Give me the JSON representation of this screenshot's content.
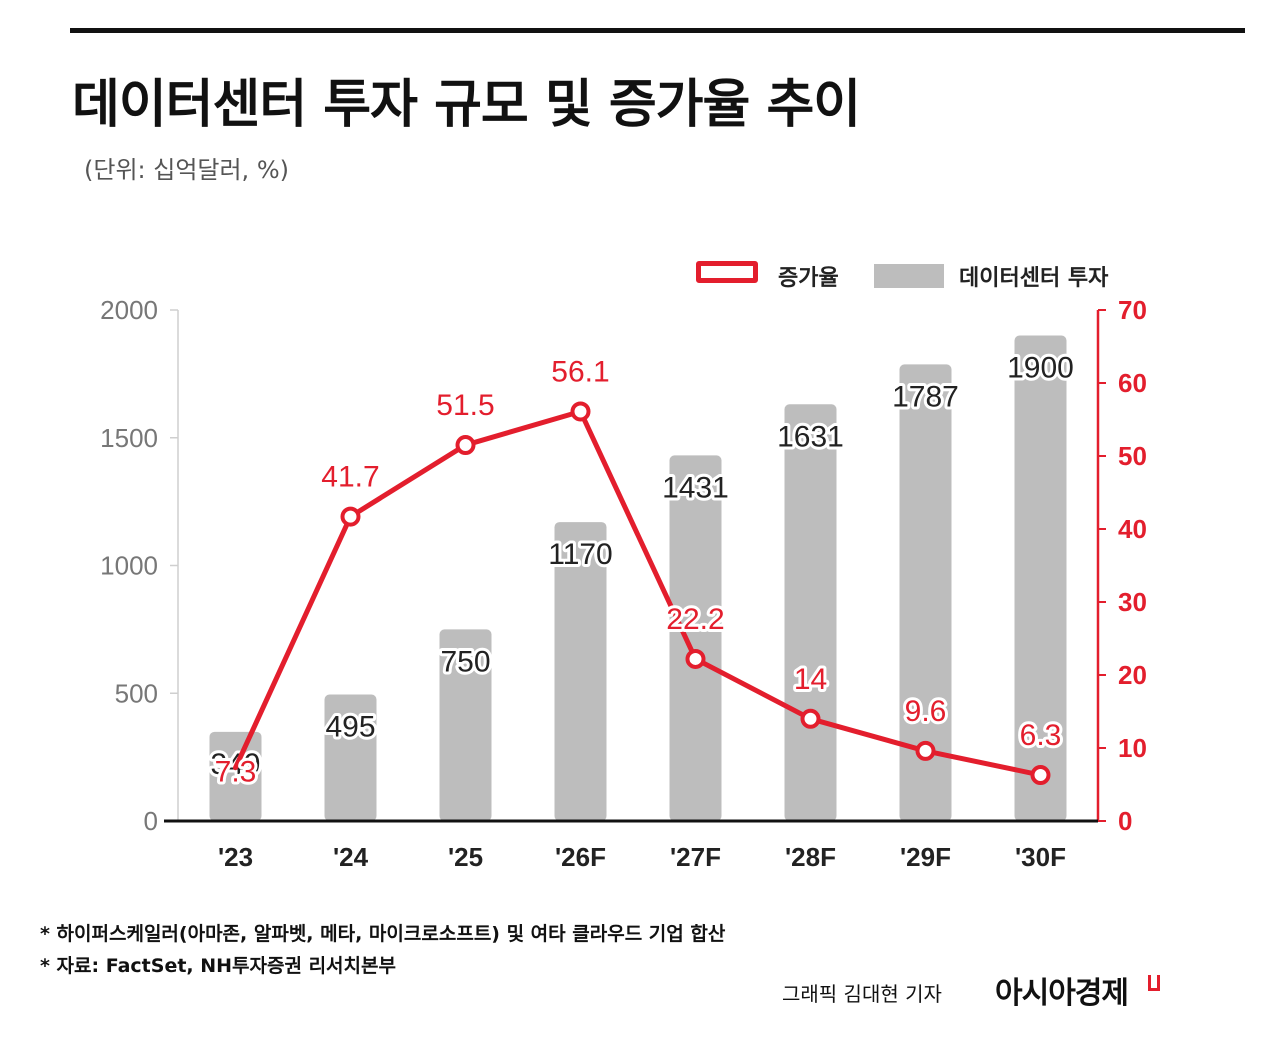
{
  "header": {
    "title": "데이터센터 투자 규모 및 증가율 추이",
    "subtitle": "(단위: 십억달러, %)"
  },
  "legend": {
    "line_label": "증가율",
    "bar_label": "데이터센터 투자"
  },
  "colors": {
    "line": "#e31e2d",
    "bar": "#bdbdbd",
    "left_axis_text": "#777777",
    "right_axis_text": "#e31e2d"
  },
  "chart_data": {
    "type": "bar",
    "categories": [
      "'23",
      "'24",
      "'25",
      "'26F",
      "'27F",
      "'28F",
      "'29F",
      "'30F"
    ],
    "series": [
      {
        "name": "데이터센터 투자",
        "type": "bar",
        "axis": "left",
        "values": [
          349,
          495,
          750,
          1170,
          1431,
          1631,
          1787,
          1900
        ]
      },
      {
        "name": "증가율",
        "type": "line",
        "axis": "right",
        "values": [
          7.3,
          41.7,
          51.5,
          56.1,
          22.2,
          14,
          9.6,
          6.3
        ]
      }
    ],
    "left_axis": {
      "ticks": [
        0,
        500,
        1000,
        1500,
        2000
      ],
      "ylim": [
        0,
        2000
      ]
    },
    "right_axis": {
      "ticks": [
        0,
        10,
        20,
        30,
        40,
        50,
        60,
        70
      ],
      "ylim": [
        0,
        70
      ]
    },
    "grid": false,
    "legend_position": "top-right"
  },
  "footer": {
    "note1": "* 하이퍼스케일러(아마존, 알파벳, 메타, 마이크로소프트) 및 여타 클라우드 기업 합산",
    "note2": "* 자료: FactSet, NH투자증권 리서치본부",
    "credit": "그래픽  김대현 기자",
    "logo": "아시아경제"
  }
}
